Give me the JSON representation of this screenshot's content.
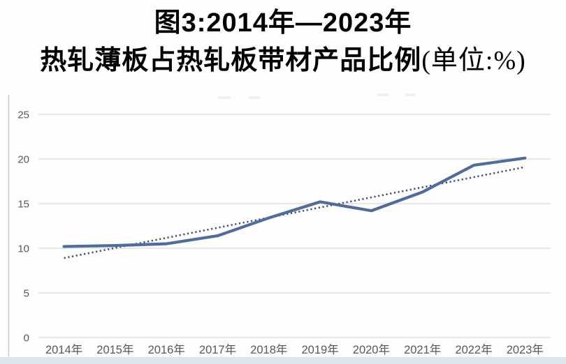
{
  "title": {
    "line1": "图3:2014年—2023年",
    "line2_main": "热轧薄板占热轧板带材产品比例",
    "line2_unit": "(单位:%)"
  },
  "chart_data": {
    "type": "line",
    "title": "图3:2014年—2023年热轧薄板占热轧板带材产品比例",
    "unit": "%",
    "categories": [
      "2014年",
      "2015年",
      "2016年",
      "2017年",
      "2018年",
      "2019年",
      "2020年",
      "2021年",
      "2022年",
      "2023年"
    ],
    "values": [
      10.2,
      10.3,
      10.5,
      11.4,
      13.4,
      15.2,
      14.2,
      16.3,
      19.3,
      20.1
    ],
    "trendline": {
      "type": "linear",
      "style": "dotted",
      "start_value": 8.9,
      "end_value": 19.1
    },
    "ylim": [
      0,
      25
    ],
    "yticks": [
      0,
      5,
      10,
      15,
      20,
      25
    ],
    "grid": true,
    "legend": "none",
    "colors": {
      "series_line": "#4e6c9d",
      "trend_line": "#3d5270",
      "gridline": "#dcdcdc",
      "tick_label": "#585858",
      "bottom_strip": "#dfe5ef",
      "plot_border": "#c9c9c9"
    }
  }
}
